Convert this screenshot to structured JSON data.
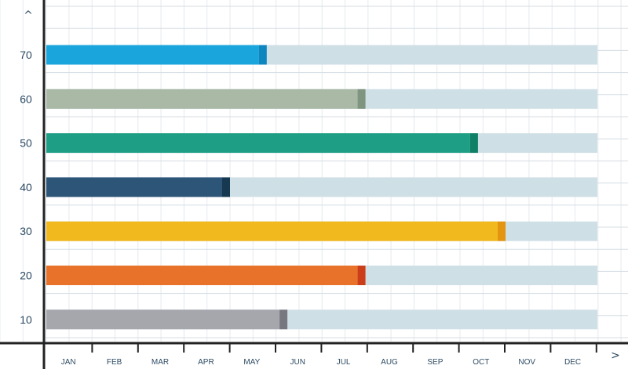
{
  "chart_data": {
    "type": "bar",
    "orientation": "horizontal",
    "y_ticks": [
      "70",
      "60",
      "50",
      "40",
      "30",
      "20",
      "10"
    ],
    "x_ticks": [
      "JAN",
      "FEB",
      "MAR",
      "APR",
      "MAY",
      "JUN",
      "JUL",
      "AUG",
      "SEP",
      "OCT",
      "NOV",
      "DEC"
    ],
    "xlim": [
      0,
      12
    ],
    "axis_arrows": {
      "y": "^",
      "x": ">"
    },
    "grid": true,
    "bars": [
      {
        "category": "70",
        "value": 4.8,
        "color": "#1aa6dc",
        "cap_color": "#0d86c0"
      },
      {
        "category": "60",
        "value": 6.95,
        "color": "#a9b9a5",
        "cap_color": "#7f9580"
      },
      {
        "category": "50",
        "value": 9.4,
        "color": "#1e9e84",
        "cap_color": "#0f7f66"
      },
      {
        "category": "40",
        "value": 4.0,
        "color": "#2d5577",
        "cap_color": "#163850"
      },
      {
        "category": "30",
        "value": 10.0,
        "color": "#f2b91e",
        "cap_color": "#e39512"
      },
      {
        "category": "20",
        "value": 6.95,
        "color": "#e8722a",
        "cap_color": "#cc3d1a"
      },
      {
        "category": "10",
        "value": 5.25,
        "color": "#a6a6ad",
        "cap_color": "#77777f"
      }
    ],
    "track_color": "#cfdfe6"
  }
}
